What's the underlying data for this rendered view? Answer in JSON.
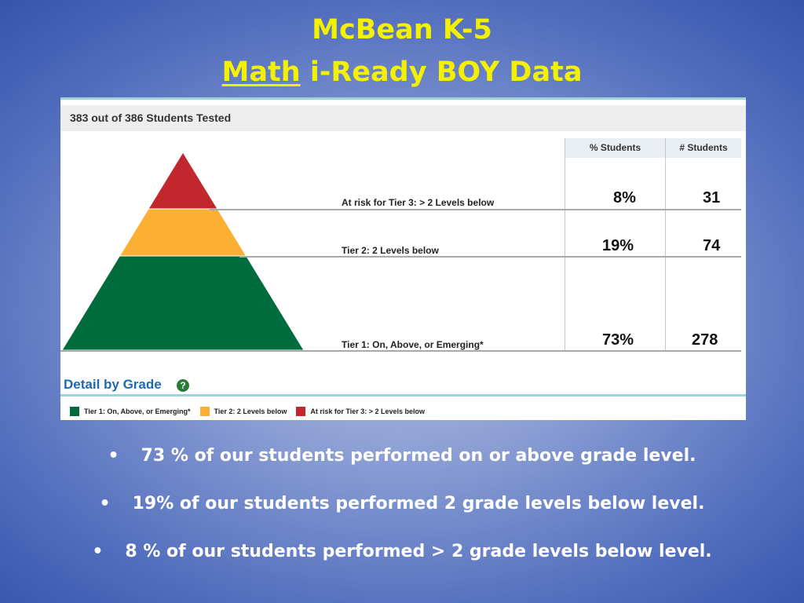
{
  "slide": {
    "title_line1": "McBean K-5",
    "title_line2_underlined": "Math",
    "title_line2_rest": " i-Ready BOY Data"
  },
  "panel": {
    "tested_text": "383 out of 386 Students Tested",
    "col_pct_header": "% Students",
    "col_count_header": "# Students",
    "detail_label": "Detail by Grade",
    "help_symbol": "?"
  },
  "chart_data": {
    "type": "table",
    "tiers": [
      {
        "label": "At risk for Tier 3: > 2 Levels below",
        "percent_text": "8%",
        "count_text": "31",
        "percent": 8,
        "count": 31,
        "color": "#c1272d"
      },
      {
        "label": "Tier 2: 2 Levels below",
        "percent_text": "19%",
        "count_text": "74",
        "percent": 19,
        "count": 74,
        "color": "#fbb034"
      },
      {
        "label": "Tier 1: On, Above, or Emerging*",
        "percent_text": "73%",
        "count_text": "278",
        "percent": 73,
        "count": 278,
        "color": "#006b3c"
      }
    ],
    "legend": [
      {
        "label": "Tier 1: On, Above, or Emerging*",
        "color": "#006b3c"
      },
      {
        "label": "Tier 2: 2 Levels below",
        "color": "#fbb034"
      },
      {
        "label": "At risk for Tier 3: > 2 Levels below",
        "color": "#c1272d"
      }
    ]
  },
  "bullets": [
    {
      "symbol": "•",
      "text": "73 % of our students performed on or above grade level."
    },
    {
      "symbol": "•",
      "text": "19% of our students performed 2 grade levels below level."
    },
    {
      "symbol": "•",
      "text": "8 % of our students performed > 2 grade levels below level."
    }
  ]
}
